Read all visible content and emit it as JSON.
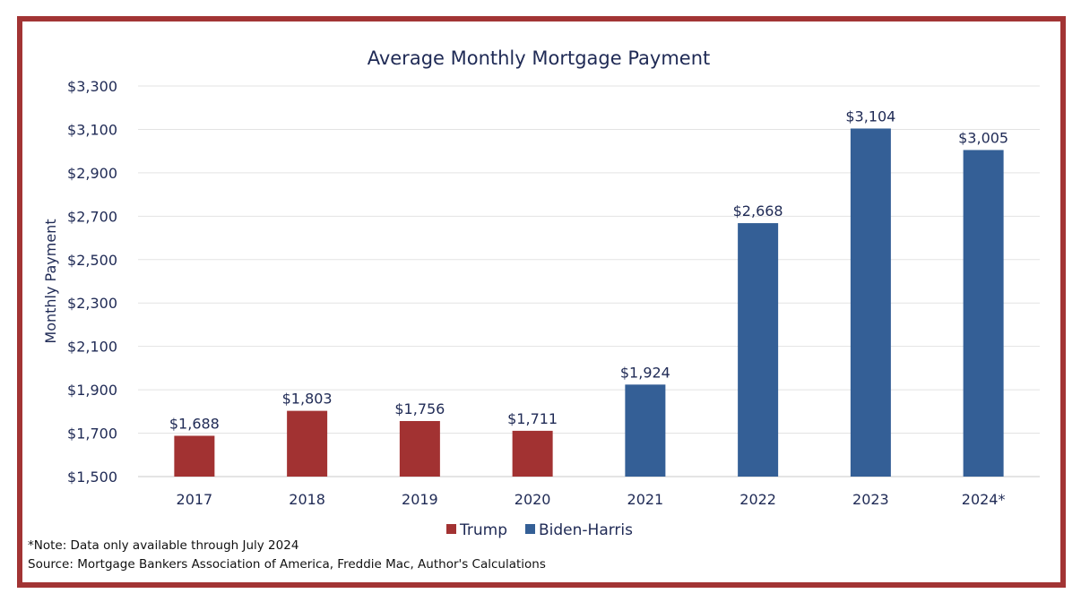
{
  "chart_data": {
    "type": "bar",
    "title": "Average Monthly Mortgage Payment",
    "ylabel": "Monthly Payment",
    "xlabel": "",
    "categories": [
      "2017",
      "2018",
      "2019",
      "2020",
      "2021",
      "2022",
      "2023",
      "2024*"
    ],
    "values": [
      1688,
      1803,
      1756,
      1711,
      1924,
      2668,
      3104,
      3005
    ],
    "value_labels": [
      "$1,688",
      "$1,803",
      "$1,756",
      "$1,711",
      "$1,924",
      "$2,668",
      "$3,104",
      "$3,005"
    ],
    "groups": [
      "Trump",
      "Trump",
      "Trump",
      "Trump",
      "Biden-Harris",
      "Biden-Harris",
      "Biden-Harris",
      "Biden-Harris"
    ],
    "ylim": [
      1500,
      3300
    ],
    "yticks": [
      1500,
      1700,
      1900,
      2100,
      2300,
      2500,
      2700,
      2900,
      3100,
      3300
    ],
    "ytick_labels": [
      "$1,500",
      "$1,700",
      "$1,900",
      "$2,100",
      "$2,300",
      "$2,500",
      "$2,700",
      "$2,900",
      "$3,100",
      "$3,300"
    ],
    "grid": true,
    "legend": {
      "placement": "bottom",
      "entries": [
        {
          "name": "Trump",
          "color": "#a23232"
        },
        {
          "name": "Biden-Harris",
          "color": "#345f96"
        }
      ]
    },
    "notes": [
      "*Note: Data only available through July 2024",
      "Source: Mortgage Bankers Association of America, Freddie Mac, Author's Calculations"
    ]
  },
  "colors": {
    "frame": "#a23434",
    "text": "#1f2a55",
    "grid": "#e3e3e3"
  }
}
